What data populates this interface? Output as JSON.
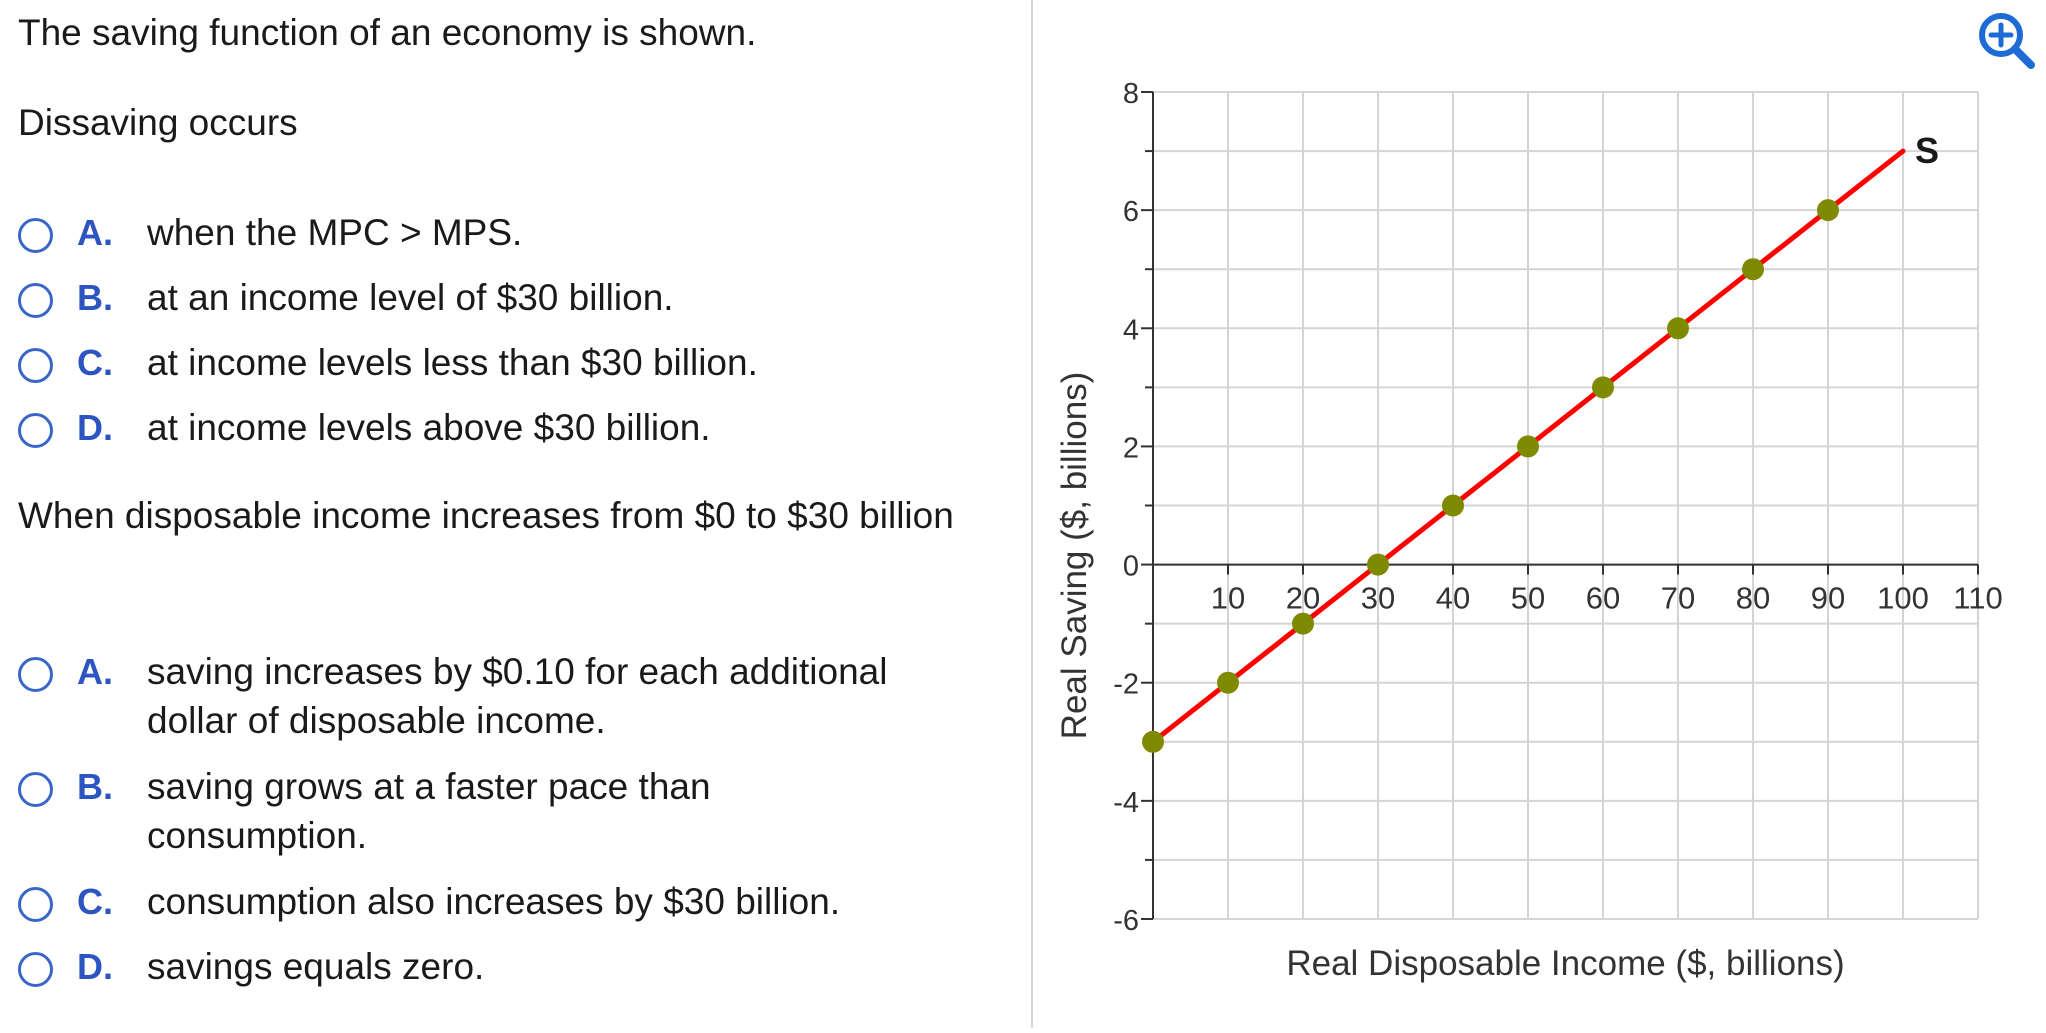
{
  "question_intro": "The saving function of an economy is shown.",
  "question1": {
    "prompt": "Dissaving occurs",
    "options": [
      {
        "letter": "A.",
        "text": "when the MPC > MPS."
      },
      {
        "letter": "B.",
        "text": "at an income level of $30 billion."
      },
      {
        "letter": "C.",
        "text": "at income levels less than $30 billion."
      },
      {
        "letter": "D.",
        "text": "at income levels above $30 billion."
      }
    ]
  },
  "question2": {
    "prompt": "When disposable income increases from $0 to $30 billion",
    "options": [
      {
        "letter": "A.",
        "text": "saving increases by $0.10 for each additional dollar of disposable income."
      },
      {
        "letter": "B.",
        "text": "saving grows at a faster pace than consumption."
      },
      {
        "letter": "C.",
        "text": "consumption also increases by $30 billion."
      },
      {
        "letter": "D.",
        "text": "savings equals zero."
      }
    ]
  },
  "zoom_icon": "zoom-in-magnifier-icon",
  "colors": {
    "line": "#ff0000",
    "points": "#7f8a00",
    "grid": "#d4d4d4",
    "axis": "#333333",
    "option_letter": "#2c55c1",
    "radio_border": "#3a66c8",
    "zoom_icon": "#1f6bd6"
  },
  "chart_data": {
    "type": "line",
    "xlabel": "Real Disposable Income ($, billions)",
    "ylabel": "Real Saving ($, billions)",
    "xlim": [
      0,
      110
    ],
    "ylim": [
      -6,
      8
    ],
    "x_ticks": [
      10,
      20,
      30,
      40,
      50,
      60,
      70,
      80,
      90,
      100,
      110
    ],
    "y_ticks": [
      -6,
      -4,
      -2,
      0,
      2,
      4,
      6,
      8
    ],
    "grid": true,
    "series": [
      {
        "name": "S",
        "x": [
          0,
          10,
          20,
          30,
          40,
          50,
          60,
          70,
          80,
          90,
          100
        ],
        "y": [
          -3,
          -2,
          -1,
          0,
          1,
          2,
          3,
          4,
          5,
          6,
          7
        ],
        "markers_x": [
          0,
          10,
          20,
          30,
          40,
          50,
          60,
          70,
          80,
          90
        ],
        "markers_y": [
          -3,
          -2,
          -1,
          0,
          1,
          2,
          3,
          4,
          5,
          6
        ]
      }
    ]
  }
}
